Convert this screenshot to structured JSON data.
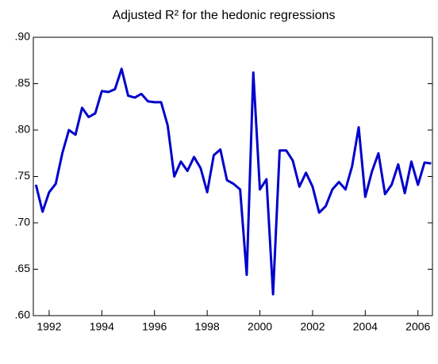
{
  "chart_data": {
    "type": "line",
    "title": "Adjusted R² for the hedonic regressions",
    "x": [
      1991.5,
      1991.75,
      1992,
      1992.25,
      1992.5,
      1992.75,
      1993,
      1993.25,
      1993.5,
      1993.75,
      1994,
      1994.25,
      1994.5,
      1994.75,
      1995,
      1995.25,
      1995.5,
      1995.75,
      1996,
      1996.25,
      1996.5,
      1996.75,
      1997,
      1997.25,
      1997.5,
      1997.75,
      1998,
      1998.25,
      1998.5,
      1998.75,
      1999,
      1999.25,
      1999.5,
      1999.75,
      2000,
      2000.25,
      2000.5,
      2000.75,
      2001,
      2001.25,
      2001.5,
      2001.75,
      2002,
      2002.25,
      2002.5,
      2002.75,
      2003,
      2003.25,
      2003.5,
      2003.75,
      2004,
      2004.25,
      2004.5,
      2004.75,
      2005,
      2005.25,
      2005.5,
      2005.75,
      2006,
      2006.25,
      2006.5
    ],
    "series": [
      {
        "color": "#0000cc",
        "values": [
          0.741,
          0.712,
          0.733,
          0.742,
          0.775,
          0.8,
          0.795,
          0.824,
          0.814,
          0.818,
          0.842,
          0.841,
          0.844,
          0.866,
          0.837,
          0.835,
          0.839,
          0.831,
          0.83,
          0.83,
          0.805,
          0.75,
          0.766,
          0.756,
          0.771,
          0.759,
          0.733,
          0.773,
          0.779,
          0.746,
          0.742,
          0.736,
          0.644,
          0.862,
          0.736,
          0.747,
          0.623,
          0.778,
          0.778,
          0.767,
          0.739,
          0.754,
          0.739,
          0.711,
          0.718,
          0.736,
          0.744,
          0.736,
          0.761,
          0.803,
          0.728,
          0.755,
          0.775,
          0.731,
          0.741,
          0.763,
          0.732,
          0.766,
          0.741,
          0.765,
          0.764
        ]
      }
    ],
    "xlim": [
      1991.4,
      2006.55
    ],
    "xticks": [
      1992,
      1994,
      1996,
      1998,
      2000,
      2002,
      2004,
      2006
    ],
    "ylim": [
      0.6,
      0.9
    ],
    "yticks": [
      {
        "value": 0.6,
        "label": ".60"
      },
      {
        "value": 0.65,
        "label": ".65"
      },
      {
        "value": 0.7,
        "label": ".70"
      },
      {
        "value": 0.75,
        "label": ".75"
      },
      {
        "value": 0.8,
        "label": ".80"
      },
      {
        "value": 0.85,
        "label": ".85"
      },
      {
        "value": 0.9,
        "label": ".90"
      }
    ],
    "grid": false
  }
}
